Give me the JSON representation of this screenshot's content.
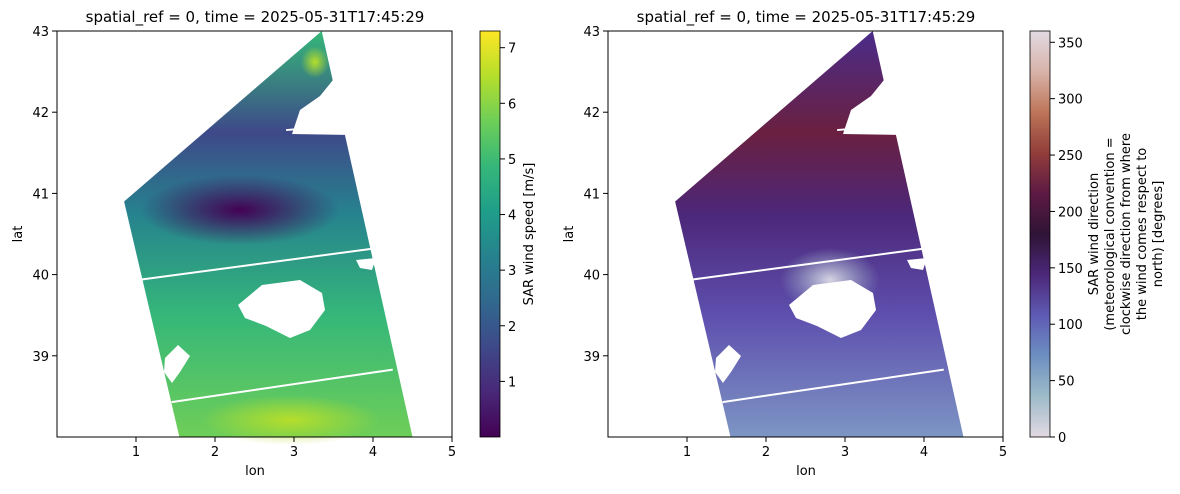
{
  "chart_data": [
    {
      "type": "heatmap",
      "title": "spatial_ref = 0, time = 2025-05-31T17:45:29",
      "xlabel": "lon",
      "ylabel": "lat",
      "xlim": [
        0,
        5
      ],
      "ylim": [
        38,
        43
      ],
      "xticks": [
        "1",
        "2",
        "3",
        "4",
        "5"
      ],
      "yticks": [
        "39",
        "40",
        "41",
        "42",
        "43"
      ],
      "colorbar": {
        "label": "SAR wind speed [m/s]",
        "range": [
          0,
          7.3
        ],
        "ticks": [
          "1",
          "2",
          "3",
          "4",
          "5",
          "6",
          "7"
        ],
        "colormap": "viridis"
      },
      "swath_corners_lonlat": [
        [
          3.35,
          43.0
        ],
        [
          4.5,
          38.0
        ],
        [
          1.55,
          38.0
        ],
        [
          0.85,
          40.9
        ]
      ],
      "gap_lines_lonlat": [
        [
          [
            2.9,
            41.78
          ],
          [
            3.75,
            41.85
          ]
        ],
        [
          [
            1.0,
            39.93
          ],
          [
            4.0,
            40.32
          ]
        ],
        [
          [
            1.45,
            38.43
          ],
          [
            4.25,
            38.83
          ]
        ]
      ]
    },
    {
      "type": "heatmap",
      "title": "spatial_ref = 0, time = 2025-05-31T17:45:29",
      "xlabel": "lon",
      "ylabel": "lat",
      "xlim": [
        0,
        5
      ],
      "ylim": [
        38,
        43
      ],
      "xticks": [
        "1",
        "2",
        "3",
        "4",
        "5"
      ],
      "yticks": [
        "39",
        "40",
        "41",
        "42",
        "43"
      ],
      "colorbar": {
        "label_lines": [
          "SAR wind direction",
          "(meteorological convention =",
          "clockwise direction from where",
          "the wind comes respect to",
          "north) [degrees]"
        ],
        "range": [
          0,
          360
        ],
        "ticks": [
          "0",
          "50",
          "100",
          "150",
          "200",
          "250",
          "300",
          "350"
        ],
        "colormap": "twilight"
      },
      "swath_corners_lonlat": [
        [
          3.35,
          43.0
        ],
        [
          4.5,
          38.0
        ],
        [
          1.55,
          38.0
        ],
        [
          0.85,
          40.9
        ]
      ],
      "gap_lines_lonlat": [
        [
          [
            2.9,
            41.78
          ],
          [
            3.75,
            41.85
          ]
        ],
        [
          [
            1.0,
            39.93
          ],
          [
            4.0,
            40.32
          ]
        ],
        [
          [
            1.45,
            38.43
          ],
          [
            4.25,
            38.83
          ]
        ]
      ]
    }
  ],
  "colors": {
    "viridis": [
      "#440154",
      "#482878",
      "#3e4989",
      "#31688e",
      "#26828e",
      "#1f9e89",
      "#35b779",
      "#6ece58",
      "#b5de2b",
      "#fde725"
    ],
    "twilight": [
      "#e2d9e2",
      "#9ebbc9",
      "#6d8fc1",
      "#5e5bb4",
      "#4c2779",
      "#2f1436",
      "#5d1a43",
      "#923d3a",
      "#bd7558",
      "#d8b3a9",
      "#e2d9e2"
    ]
  }
}
